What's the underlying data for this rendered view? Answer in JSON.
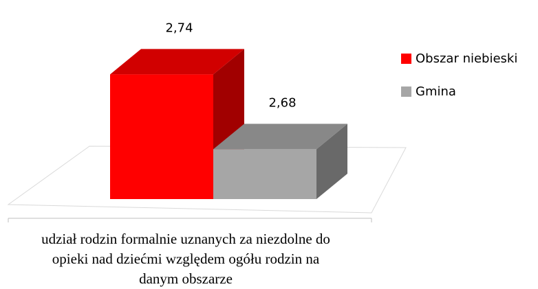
{
  "chart_data": {
    "type": "bar3d",
    "categories": [
      "udział rodzin formalnie uznanych za niezdolne do opieki nad dziećmi względem ogółu rodzin na danym obszarze"
    ],
    "series": [
      {
        "name": "Obszar niebieski",
        "color": "#ff0000",
        "values": [
          2.74
        ],
        "value_labels": [
          "2,74"
        ]
      },
      {
        "name": "Gmina",
        "color": "#a6a6a6",
        "values": [
          2.68
        ],
        "value_labels": [
          "2,68"
        ]
      }
    ],
    "ylim": [
      2.64,
      2.76
    ],
    "legend": "right"
  }
}
